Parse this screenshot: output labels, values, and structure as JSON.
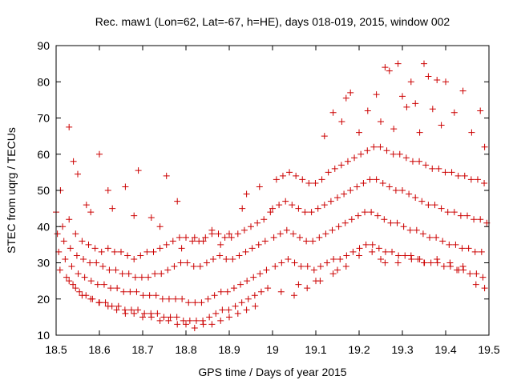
{
  "chart_data": {
    "type": "scatter",
    "title": "Rec. maw1 (Lon=62, Lat=-67, h=HE), days 018-019, 2015, window 002",
    "xlabel": "GPS time / Days of year 2015",
    "ylabel": "STEC from uqrg / TECUs",
    "xlim": [
      18.5,
      19.5
    ],
    "ylim": [
      10,
      90
    ],
    "xticks": [
      "18.5",
      "18.6",
      "18.7",
      "18.8",
      "18.9",
      "19",
      "19.1",
      "19.2",
      "19.3",
      "19.4",
      "19.5"
    ],
    "yticks": [
      "10",
      "20",
      "30",
      "40",
      "50",
      "60",
      "70",
      "80",
      "90"
    ],
    "grid": false,
    "legend": "none",
    "marker": "plus",
    "color": "#cc0000",
    "series": [
      {
        "x": [
          18.5,
          18.515,
          18.53,
          18.545,
          18.56,
          18.575,
          18.59,
          18.605,
          18.62,
          18.635,
          18.65,
          18.665,
          18.68,
          18.695,
          18.71,
          18.725,
          18.74,
          18.755,
          18.77,
          18.785,
          18.8,
          18.815,
          18.83,
          18.845,
          18.86,
          18.875,
          18.89,
          18.905,
          18.92,
          18.935,
          18.95,
          18.965,
          18.98,
          18.995
        ],
        "y": [
          44,
          40,
          42,
          38,
          36,
          35,
          34,
          33,
          34,
          33,
          33,
          32,
          31,
          32,
          33,
          33,
          34,
          35,
          36,
          37,
          37,
          36,
          36,
          37,
          38,
          38,
          37,
          37,
          38,
          39,
          40,
          41,
          42,
          44
        ]
      },
      {
        "x": [
          18.503,
          18.518,
          18.533,
          18.548,
          18.563,
          18.578,
          18.593,
          18.608,
          18.623,
          18.638,
          18.653,
          18.668,
          18.683,
          18.698,
          18.713,
          18.728,
          18.743,
          18.758,
          18.773,
          18.788,
          18.803,
          18.818,
          18.833,
          18.848,
          18.863,
          18.878,
          18.893,
          18.908,
          18.923,
          18.938,
          18.953,
          18.968,
          18.983
        ],
        "y": [
          38,
          36,
          34,
          32,
          31,
          30,
          30,
          29,
          28,
          28,
          27,
          27,
          26,
          26,
          26,
          27,
          27,
          28,
          29,
          30,
          30,
          29,
          29,
          30,
          31,
          32,
          31,
          31,
          32,
          33,
          34,
          35,
          36
        ]
      },
      {
        "x": [
          18.506,
          18.521,
          18.536,
          18.551,
          18.566,
          18.581,
          18.596,
          18.611,
          18.626,
          18.641,
          18.656,
          18.671,
          18.686,
          18.701,
          18.716,
          18.731,
          18.746,
          18.761,
          18.776,
          18.791,
          18.806,
          18.821,
          18.836,
          18.851,
          18.866,
          18.881,
          18.896,
          18.911,
          18.926,
          18.941,
          18.956,
          18.971,
          18.986
        ],
        "y": [
          33,
          31,
          29,
          27,
          26,
          25,
          24,
          24,
          23,
          23,
          22,
          22,
          22,
          21,
          21,
          21,
          20,
          20,
          20,
          20,
          19,
          19,
          19,
          20,
          21,
          22,
          22,
          23,
          24,
          25,
          26,
          27,
          28
        ]
      },
      {
        "x": [
          18.509,
          18.524,
          18.539,
          18.554,
          18.569,
          18.584,
          18.599,
          18.614,
          18.629,
          18.644,
          18.659,
          18.674,
          18.689,
          18.704,
          18.719,
          18.734,
          18.749,
          18.764,
          18.779,
          18.794,
          18.809,
          18.824,
          18.839,
          18.854,
          18.869,
          18.884,
          18.899,
          18.914,
          18.929,
          18.944,
          18.959,
          18.974,
          18.989
        ],
        "y": [
          28,
          26,
          24,
          22,
          21,
          20,
          19,
          19,
          18,
          18,
          17,
          17,
          17,
          16,
          16,
          16,
          15,
          15,
          15,
          14,
          14,
          14,
          14,
          15,
          16,
          17,
          17,
          18,
          19,
          20,
          21,
          22,
          23
        ]
      },
      {
        "x": [
          18.53,
          18.545,
          18.56,
          18.58,
          18.6,
          18.62,
          18.64,
          18.66,
          18.68,
          18.7,
          18.72,
          18.74,
          18.76,
          18.78,
          18.8,
          18.82,
          18.84,
          18.86,
          18.88,
          18.9,
          18.92,
          18.94,
          18.96
        ],
        "y": [
          25,
          23,
          21,
          20,
          19,
          18,
          17,
          16,
          16,
          15,
          15,
          14,
          14,
          13,
          13,
          12,
          13,
          13,
          14,
          15,
          16,
          17,
          18
        ]
      },
      {
        "x": [
          18.53,
          18.55,
          18.57,
          18.6,
          18.62,
          18.66,
          18.69,
          18.72,
          18.755,
          18.78,
          18.82,
          18.86,
          18.9,
          18.94,
          18.97,
          18.51,
          18.54,
          18.58,
          18.63,
          18.68,
          18.74,
          18.79,
          18.84,
          18.88,
          18.93
        ],
        "y": [
          67.5,
          54.5,
          46,
          60,
          50,
          51,
          55.5,
          42.5,
          54,
          47,
          37,
          39,
          38,
          49,
          51,
          50,
          58,
          44,
          45,
          43,
          40,
          34,
          36,
          35,
          45
        ]
      },
      {
        "x": [
          19.0,
          19.015,
          19.03,
          19.045,
          19.06,
          19.075,
          19.09,
          19.105,
          19.12,
          19.135,
          19.15,
          19.165,
          19.18,
          19.195,
          19.21,
          19.225,
          19.24,
          19.255,
          19.27,
          19.285,
          19.3,
          19.315,
          19.33,
          19.345,
          19.36,
          19.375,
          19.39,
          19.405,
          19.42,
          19.435,
          19.45,
          19.465,
          19.48,
          19.495
        ],
        "y": [
          45,
          46,
          47,
          46,
          45,
          44,
          44,
          45,
          46,
          47,
          48,
          49,
          50,
          51,
          52,
          53,
          53,
          52,
          51,
          50,
          50,
          49,
          48,
          47,
          46,
          46,
          45,
          44,
          44,
          43,
          43,
          42,
          42,
          41
        ]
      },
      {
        "x": [
          19.003,
          19.018,
          19.033,
          19.048,
          19.063,
          19.078,
          19.093,
          19.108,
          19.123,
          19.138,
          19.153,
          19.168,
          19.183,
          19.198,
          19.213,
          19.228,
          19.243,
          19.258,
          19.273,
          19.288,
          19.303,
          19.318,
          19.333,
          19.348,
          19.363,
          19.378,
          19.393,
          19.408,
          19.423,
          19.438,
          19.453,
          19.468,
          19.483
        ],
        "y": [
          37,
          38,
          39,
          38,
          37,
          36,
          36,
          37,
          38,
          39,
          40,
          41,
          42,
          43,
          44,
          44,
          43,
          42,
          41,
          41,
          40,
          39,
          39,
          38,
          37,
          37,
          36,
          35,
          35,
          34,
          34,
          33,
          33
        ]
      },
      {
        "x": [
          19.006,
          19.021,
          19.036,
          19.051,
          19.066,
          19.081,
          19.096,
          19.111,
          19.126,
          19.141,
          19.156,
          19.171,
          19.186,
          19.201,
          19.216,
          19.231,
          19.246,
          19.261,
          19.276,
          19.291,
          19.306,
          19.321,
          19.336,
          19.351,
          19.366,
          19.381,
          19.396,
          19.411,
          19.426,
          19.441,
          19.456,
          19.471,
          19.486
        ],
        "y": [
          29,
          30,
          31,
          30,
          29,
          29,
          28,
          29,
          30,
          31,
          31,
          32,
          33,
          34,
          35,
          35,
          34,
          33,
          33,
          32,
          32,
          31,
          31,
          30,
          30,
          30,
          29,
          29,
          28,
          28,
          27,
          27,
          26
        ]
      },
      {
        "x": [
          19.009,
          19.024,
          19.039,
          19.054,
          19.069,
          19.084,
          19.099,
          19.114,
          19.129,
          19.144,
          19.159,
          19.174,
          19.189,
          19.204,
          19.219,
          19.234,
          19.249,
          19.264,
          19.279,
          19.294,
          19.309,
          19.324,
          19.339,
          19.354,
          19.369,
          19.384,
          19.399,
          19.414,
          19.429,
          19.444,
          19.459,
          19.474,
          19.489
        ],
        "y": [
          53,
          54,
          55,
          54,
          53,
          52,
          52,
          53,
          55,
          56,
          57,
          58,
          59,
          60,
          61,
          62,
          62,
          61,
          60,
          60,
          59,
          58,
          58,
          57,
          56,
          56,
          55,
          55,
          54,
          54,
          53,
          53,
          52
        ]
      },
      {
        "x": [
          19.12,
          19.14,
          19.16,
          19.17,
          19.18,
          19.2,
          19.22,
          19.24,
          19.25,
          19.26,
          19.27,
          19.28,
          19.29,
          19.3,
          19.31,
          19.32,
          19.33,
          19.34,
          19.35,
          19.36,
          19.37,
          19.38,
          19.39,
          19.4,
          19.42,
          19.44,
          19.46,
          19.48,
          19.49
        ],
        "y": [
          65,
          71.5,
          69,
          75.5,
          77,
          66,
          72,
          76.5,
          69,
          84,
          83,
          67,
          85,
          76,
          73,
          80,
          74,
          66,
          85,
          81.5,
          72.5,
          80.5,
          68,
          80,
          71.5,
          77.5,
          66,
          72,
          62
        ]
      },
      {
        "x": [
          19.02,
          19.05,
          19.08,
          19.11,
          19.14,
          19.17,
          19.2,
          19.23,
          19.26,
          19.29,
          19.32,
          19.35,
          19.38,
          19.41,
          19.44,
          19.47,
          19.49,
          19.06,
          19.1,
          19.15,
          19.25,
          19.34,
          19.43
        ],
        "y": [
          22,
          21,
          23,
          25,
          27,
          29,
          32,
          33,
          30,
          30,
          32,
          30,
          31,
          30,
          29,
          24,
          23,
          24,
          25,
          28,
          31,
          31,
          28
        ]
      }
    ]
  }
}
